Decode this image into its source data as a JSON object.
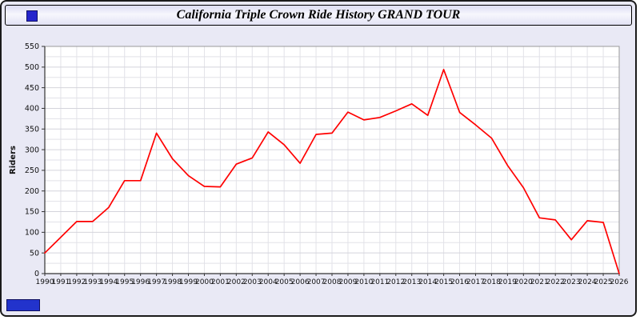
{
  "window": {
    "title": "California Triple Crown Ride History GRAND TOUR"
  },
  "colors": {
    "line": "#ff0000",
    "window_bg": "#e9e9f5",
    "plot_bg": "#ffffff",
    "grid_minor": "#e2e2e8",
    "grid_major": "#d4d4dc",
    "axis": "#333333",
    "accent_blue": "#2233cc"
  },
  "chart_data": {
    "type": "line",
    "title": "California Triple Crown Ride History GRAND TOUR",
    "xlabel": "",
    "ylabel": "Riders",
    "ylim": [
      0,
      550
    ],
    "ytick_step": 50,
    "ygrid_minor_step": 25,
    "grid": true,
    "legend": "none",
    "line_color": "#ff0000",
    "x": [
      1990,
      1991,
      1992,
      1993,
      1994,
      1995,
      1996,
      1997,
      1998,
      1999,
      2000,
      2001,
      2002,
      2003,
      2004,
      2005,
      2006,
      2007,
      2008,
      2009,
      2010,
      2011,
      2012,
      2013,
      2014,
      2015,
      2016,
      2017,
      2018,
      2019,
      2020,
      2021,
      2022,
      2023,
      2024,
      2025,
      2026
    ],
    "values": [
      50,
      88,
      126,
      126,
      160,
      225,
      225,
      340,
      278,
      237,
      211,
      210,
      265,
      280,
      343,
      312,
      267,
      337,
      340,
      391,
      372,
      378,
      394,
      411,
      383,
      494,
      390,
      360,
      328,
      262,
      208,
      135,
      130,
      82,
      128,
      124,
      0
    ]
  }
}
